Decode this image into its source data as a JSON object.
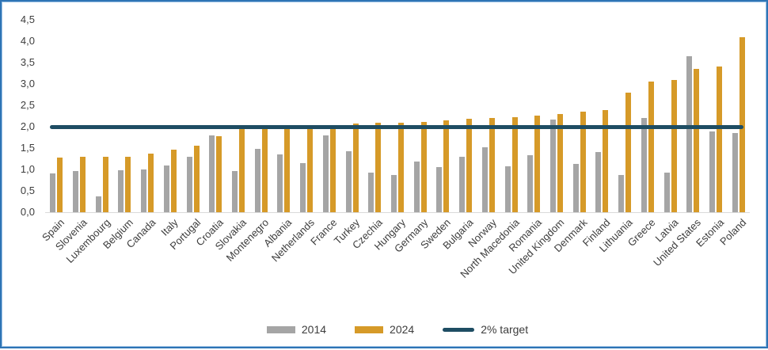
{
  "chart_data": {
    "type": "bar",
    "categories": [
      "Spain",
      "Slovenia",
      "Luxembourg",
      "Belgium",
      "Canada",
      "Italy",
      "Portugal",
      "Croatia",
      "Slovakia",
      "Montenegro",
      "Albania",
      "Netherlands",
      "France",
      "Turkey",
      "Czechia",
      "Hungary",
      "Germany",
      "Sweden",
      "Bulgaria",
      "Norway",
      "North Macedonia",
      "Romania",
      "United Kingdom",
      "Denmark",
      "Finland",
      "Lithuania",
      "Greece",
      "Latvia",
      "United States",
      "Estonia",
      "Poland"
    ],
    "series": [
      {
        "name": "2014",
        "color": "#A5A5A5",
        "values": [
          0.9,
          0.97,
          0.37,
          0.98,
          1.0,
          1.1,
          1.3,
          1.8,
          0.97,
          1.49,
          1.35,
          1.14,
          1.8,
          1.43,
          0.93,
          0.87,
          1.19,
          1.06,
          1.3,
          1.52,
          1.08,
          1.33,
          2.16,
          1.13,
          1.41,
          0.87,
          2.2,
          0.92,
          3.65,
          1.88,
          1.85
        ]
      },
      {
        "name": "2024",
        "color": "#D69A28",
        "values": [
          1.27,
          1.29,
          1.29,
          1.29,
          1.37,
          1.47,
          1.55,
          1.78,
          1.94,
          1.94,
          1.95,
          1.96,
          2.0,
          2.07,
          2.1,
          2.1,
          2.12,
          2.14,
          2.18,
          2.2,
          2.22,
          2.26,
          2.3,
          2.35,
          2.38,
          2.8,
          3.05,
          3.1,
          3.35,
          3.4,
          4.1
        ]
      }
    ],
    "target_line": {
      "label": "2% target",
      "value": 2.0,
      "color": "#1E4D63"
    },
    "y_axis": {
      "min": 0,
      "max": 4.5,
      "step": 0.5,
      "decimal_separator": ",",
      "tick_labels": [
        "0,0",
        "0,5",
        "1,0",
        "1,5",
        "2,0",
        "2,5",
        "3,0",
        "3,5",
        "4,0",
        "4,5"
      ]
    },
    "legend": {
      "position": "bottom",
      "entries": [
        "2014",
        "2024",
        "2% target"
      ]
    },
    "grid": false,
    "frame_color": "#2E74B5"
  }
}
